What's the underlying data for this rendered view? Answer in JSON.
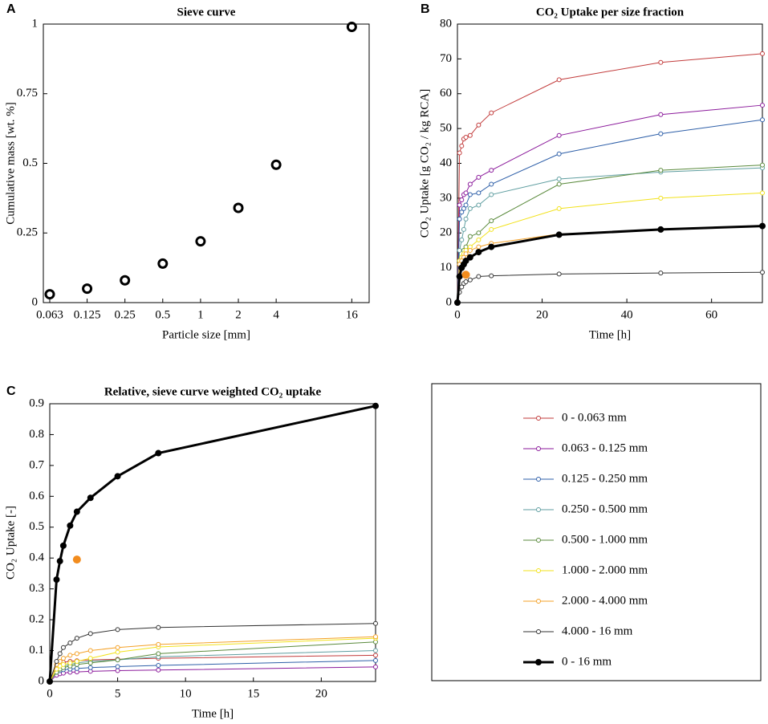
{
  "chart_data": [
    {
      "type": "scatter",
      "panel": "A",
      "title": "Sieve curve",
      "xlabel": "Particle size [mm]",
      "ylabel": "Cumulative mass [wt. %]",
      "xlog": true,
      "color": "#000000",
      "x": [
        0.063,
        0.125,
        0.25,
        0.5,
        1,
        2,
        4,
        16
      ],
      "values": [
        0.03,
        0.05,
        0.08,
        0.14,
        0.22,
        0.34,
        0.495,
        0.99
      ],
      "xlim": [
        0.056,
        22
      ],
      "xticks": [
        0.063,
        0.125,
        0.25,
        0.5,
        1,
        2,
        4,
        16
      ],
      "ylim": [
        0,
        1
      ],
      "yticks": [
        0,
        0.25,
        0.5,
        0.75,
        1
      ]
    },
    {
      "type": "line",
      "panel": "B",
      "title": "CO₂ Uptake per size fraction",
      "xlabel": "Time [h]",
      "ylabel": "CO₂ Uptake [g CO₂ / kg RCA]",
      "x": [
        0,
        0.5,
        1,
        1.5,
        2,
        3,
        5,
        8,
        24,
        48,
        72
      ],
      "series": [
        {
          "name": "0 - 0.063 mm",
          "color": "#c23b3b",
          "values": [
            0,
            43,
            45,
            47,
            47.5,
            48,
            51,
            54.5,
            64,
            69,
            71.5
          ]
        },
        {
          "name": "0.063 - 0.125 mm",
          "color": "#8b1a9b",
          "values": [
            0,
            28,
            29.5,
            31,
            31.5,
            34,
            36,
            38,
            48,
            54,
            56.7
          ]
        },
        {
          "name": "0.125 - 0.250 mm",
          "color": "#2e5fa8",
          "values": [
            0,
            24,
            26,
            27,
            28,
            31,
            31.5,
            34,
            42.7,
            48.5,
            52.5
          ]
        },
        {
          "name": "0.250 - 0.500 mm",
          "color": "#5f9ea0",
          "values": [
            0,
            15,
            18,
            21,
            24,
            27,
            28,
            31,
            35.5,
            37.5,
            38.7
          ]
        },
        {
          "name": "0.500 - 1.000 mm",
          "color": "#5a8a3c",
          "values": [
            0,
            11,
            13,
            15,
            16,
            19,
            20,
            23.5,
            34,
            38,
            39.5
          ]
        },
        {
          "name": "1.000 - 2.000 mm",
          "color": "#f2e21b",
          "values": [
            0,
            12,
            13,
            14,
            15,
            16,
            18,
            21,
            27,
            30,
            31.5
          ]
        },
        {
          "name": "2.000 - 4.000 mm",
          "color": "#f4a127",
          "values": [
            0,
            11,
            12,
            13,
            14,
            15,
            16,
            17,
            19.7,
            21,
            22
          ]
        },
        {
          "name": "4.000 - 16 mm",
          "color": "#333333",
          "values": [
            0,
            3,
            4.5,
            5.5,
            6,
            6.5,
            7.5,
            7.7,
            8.2,
            8.5,
            8.7
          ]
        },
        {
          "name": "0 - 16 mm",
          "color": "#000000",
          "linewidth": 3,
          "filled": true,
          "values": [
            0,
            7.5,
            10,
            11,
            12,
            13,
            14.5,
            16,
            19.5,
            21,
            22
          ]
        }
      ],
      "highlight": {
        "x": 2,
        "y": 8,
        "color": "#f28c1e"
      },
      "xlim": [
        0,
        72
      ],
      "xticks": [
        0,
        20,
        40,
        60
      ],
      "ylim": [
        0,
        80
      ],
      "yticks": [
        0,
        10,
        20,
        30,
        40,
        50,
        60,
        70,
        80
      ]
    },
    {
      "type": "line",
      "panel": "C",
      "title": "Relative, sieve curve weighted CO₂ uptake",
      "xlabel": "Time [h]",
      "ylabel": "CO₂ Uptake [-]",
      "x": [
        0,
        0.5,
        0.75,
        1,
        1.5,
        2,
        3,
        5,
        8,
        24
      ],
      "series": [
        {
          "color": "#c23b3b",
          "values": [
            0,
            0.055,
            0.06,
            0.062,
            0.065,
            0.067,
            0.07,
            0.072,
            0.075,
            0.085
          ]
        },
        {
          "color": "#8b1a9b",
          "values": [
            0,
            0.02,
            0.025,
            0.027,
            0.03,
            0.031,
            0.033,
            0.035,
            0.037,
            0.047
          ]
        },
        {
          "color": "#2e5fa8",
          "values": [
            0,
            0.03,
            0.035,
            0.038,
            0.04,
            0.042,
            0.045,
            0.048,
            0.052,
            0.068
          ]
        },
        {
          "color": "#5f9ea0",
          "values": [
            0,
            0.035,
            0.045,
            0.05,
            0.055,
            0.06,
            0.065,
            0.07,
            0.08,
            0.1
          ]
        },
        {
          "color": "#5a8a3c",
          "values": [
            0,
            0.03,
            0.04,
            0.045,
            0.05,
            0.055,
            0.06,
            0.07,
            0.09,
            0.128
          ]
        },
        {
          "color": "#f2e21b",
          "values": [
            0,
            0.04,
            0.05,
            0.055,
            0.06,
            0.065,
            0.075,
            0.095,
            0.112,
            0.14
          ]
        },
        {
          "color": "#f4a127",
          "values": [
            0,
            0.055,
            0.065,
            0.075,
            0.085,
            0.09,
            0.1,
            0.11,
            0.12,
            0.145
          ]
        },
        {
          "color": "#333333",
          "values": [
            0,
            0.065,
            0.09,
            0.11,
            0.125,
            0.14,
            0.155,
            0.168,
            0.175,
            0.188
          ]
        },
        {
          "color": "#000000",
          "linewidth": 3,
          "filled": true,
          "values": [
            0,
            0.33,
            0.39,
            0.44,
            0.505,
            0.55,
            0.595,
            0.665,
            0.74,
            0.893
          ]
        }
      ],
      "highlight": {
        "x": 2,
        "y": 0.395,
        "color": "#f28c1e"
      },
      "xlim": [
        0,
        24
      ],
      "xticks": [
        0,
        5,
        10,
        15,
        20
      ],
      "ylim": [
        0,
        0.9
      ],
      "yticks": [
        0,
        0.1,
        0.2,
        0.3,
        0.4,
        0.5,
        0.6,
        0.7,
        0.8,
        0.9
      ]
    }
  ]
}
